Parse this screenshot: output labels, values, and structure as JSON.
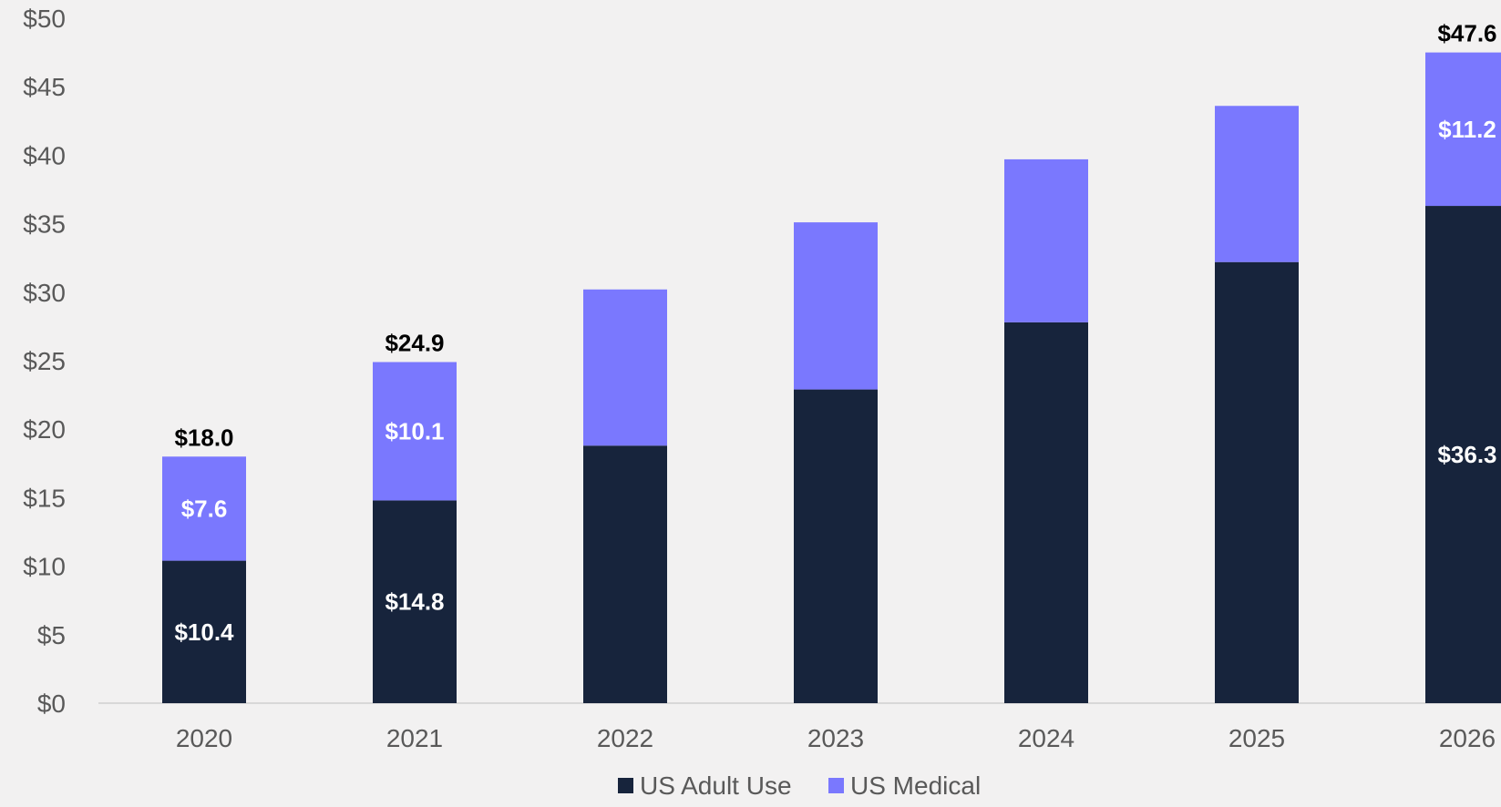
{
  "chart_data": {
    "type": "bar",
    "stacked": true,
    "title": "",
    "xlabel": "",
    "ylabel": "",
    "categories": [
      "2020",
      "2021",
      "2022",
      "2023",
      "2024",
      "2025",
      "2026"
    ],
    "ylim": [
      0,
      50
    ],
    "yticks": [
      "$0",
      "$5",
      "$10",
      "$15",
      "$20",
      "$25",
      "$30",
      "$35",
      "$40",
      "$45",
      "$50"
    ],
    "ytick_values": [
      0,
      5,
      10,
      15,
      20,
      25,
      30,
      35,
      40,
      45,
      50
    ],
    "grid": false,
    "legend_position": "bottom",
    "series": [
      {
        "name": "US Adult Use",
        "color": "#17243c",
        "values": [
          10.4,
          14.8,
          18.8,
          22.9,
          27.8,
          32.2,
          36.3
        ],
        "labels": [
          "$10.4",
          "$14.8",
          "",
          "",
          "",
          "",
          "$36.3"
        ]
      },
      {
        "name": "US Medical",
        "color": "#7a78fe",
        "values": [
          7.6,
          10.1,
          11.4,
          12.2,
          11.9,
          11.4,
          11.2
        ],
        "labels": [
          "$7.6",
          "$10.1",
          "",
          "",
          "",
          "",
          "$11.2"
        ]
      }
    ],
    "totals": [
      "$18.0",
      "$24.9",
      "",
      "",
      "",
      "",
      "$47.6"
    ]
  }
}
